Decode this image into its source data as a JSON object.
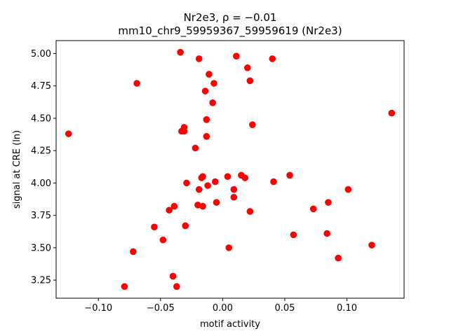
{
  "chart_data": {
    "type": "scatter",
    "title_line1": "Nr2e3, ρ = −0.01",
    "title_line2": "mm10_chr9_59959367_59959619 (Nr2e3)",
    "xlabel": "motif activity",
    "ylabel": "signal at CRE (ln)",
    "xlim": [
      -0.134,
      0.146
    ],
    "ylim": [
      3.11,
      5.1
    ],
    "grid": false,
    "marker_color": "#ff0000",
    "x_ticks": [
      -0.1,
      -0.05,
      0.0,
      0.05,
      0.1
    ],
    "x_tick_labels": [
      "−0.10",
      "−0.05",
      "0.00",
      "0.05",
      "0.10"
    ],
    "y_ticks": [
      3.25,
      3.5,
      3.75,
      4.0,
      4.25,
      4.5,
      4.75,
      5.0
    ],
    "y_tick_labels": [
      "3.25",
      "3.50",
      "3.75",
      "4.00",
      "4.25",
      "4.50",
      "4.75",
      "5.00"
    ],
    "points": [
      {
        "x": -0.124,
        "y": 4.38
      },
      {
        "x": -0.079,
        "y": 3.2
      },
      {
        "x": -0.072,
        "y": 3.47
      },
      {
        "x": -0.069,
        "y": 4.77
      },
      {
        "x": -0.055,
        "y": 3.66
      },
      {
        "x": -0.048,
        "y": 3.56
      },
      {
        "x": -0.043,
        "y": 3.79
      },
      {
        "x": -0.04,
        "y": 3.28
      },
      {
        "x": -0.039,
        "y": 3.82
      },
      {
        "x": -0.037,
        "y": 3.2
      },
      {
        "x": -0.034,
        "y": 5.01
      },
      {
        "x": -0.033,
        "y": 4.4
      },
      {
        "x": -0.031,
        "y": 4.43
      },
      {
        "x": -0.031,
        "y": 4.4
      },
      {
        "x": -0.03,
        "y": 3.67
      },
      {
        "x": -0.029,
        "y": 4.0
      },
      {
        "x": -0.022,
        "y": 4.27
      },
      {
        "x": -0.02,
        "y": 3.83
      },
      {
        "x": -0.019,
        "y": 3.95
      },
      {
        "x": -0.019,
        "y": 4.96
      },
      {
        "x": -0.017,
        "y": 4.04
      },
      {
        "x": -0.016,
        "y": 4.05
      },
      {
        "x": -0.016,
        "y": 3.82
      },
      {
        "x": -0.014,
        "y": 4.71
      },
      {
        "x": -0.013,
        "y": 4.36
      },
      {
        "x": -0.013,
        "y": 4.49
      },
      {
        "x": -0.012,
        "y": 3.98
      },
      {
        "x": -0.011,
        "y": 4.84
      },
      {
        "x": -0.008,
        "y": 4.62
      },
      {
        "x": -0.007,
        "y": 4.77
      },
      {
        "x": -0.006,
        "y": 4.01
      },
      {
        "x": -0.005,
        "y": 3.85
      },
      {
        "x": 0.004,
        "y": 4.05
      },
      {
        "x": 0.005,
        "y": 3.5
      },
      {
        "x": 0.009,
        "y": 3.95
      },
      {
        "x": 0.009,
        "y": 3.89
      },
      {
        "x": 0.011,
        "y": 4.98
      },
      {
        "x": 0.015,
        "y": 4.06
      },
      {
        "x": 0.018,
        "y": 4.04
      },
      {
        "x": 0.02,
        "y": 4.89
      },
      {
        "x": 0.022,
        "y": 4.79
      },
      {
        "x": 0.022,
        "y": 3.78
      },
      {
        "x": 0.024,
        "y": 4.45
      },
      {
        "x": 0.04,
        "y": 4.96
      },
      {
        "x": 0.041,
        "y": 4.01
      },
      {
        "x": 0.054,
        "y": 4.06
      },
      {
        "x": 0.057,
        "y": 3.6
      },
      {
        "x": 0.073,
        "y": 3.8
      },
      {
        "x": 0.084,
        "y": 3.61
      },
      {
        "x": 0.085,
        "y": 3.85
      },
      {
        "x": 0.093,
        "y": 3.42
      },
      {
        "x": 0.101,
        "y": 3.95
      },
      {
        "x": 0.12,
        "y": 3.52
      },
      {
        "x": 0.136,
        "y": 4.54
      }
    ]
  }
}
